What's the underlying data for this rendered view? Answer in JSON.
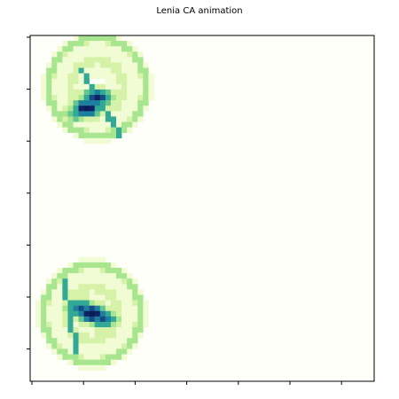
{
  "window": {
    "title": "Lenia CA animation"
  },
  "colors": {
    "background": "#fdfff8",
    "frame": "#000000",
    "cmap": [
      "#fdfff8",
      "#f1fbd4",
      "#d6f2a8",
      "#a8e58f",
      "#66c68f",
      "#31a994",
      "#1c7f9e",
      "#174b86",
      "#0f2364",
      "#081d58"
    ]
  },
  "chart_data": {
    "type": "heatmap",
    "title": "Lenia CA animation",
    "grid": false,
    "legend": "none",
    "x_ticks": 7,
    "y_ticks": 7,
    "grid_size": 64,
    "creatures": [
      {
        "name": "",
        "center": [
          12,
          9
        ],
        "radius": 9,
        "band": 0.9,
        "core": [
          [
            10,
            13,
            0.95
          ],
          [
            12,
            11,
            0.85
          ],
          [
            8,
            14,
            0.55
          ]
        ],
        "tail": [
          [
            16,
            18,
            0.55
          ],
          [
            9,
            6,
            0.6
          ]
        ]
      },
      {
        "name": "",
        "center": [
          11,
          51
        ],
        "radius": 9,
        "band": 0.9,
        "core": [
          [
            11,
            51,
            1.0
          ],
          [
            9,
            50,
            0.8
          ],
          [
            13,
            52,
            0.8
          ]
        ],
        "tail": [
          [
            6,
            45,
            0.5
          ],
          [
            8,
            58,
            0.6
          ]
        ]
      }
    ]
  }
}
